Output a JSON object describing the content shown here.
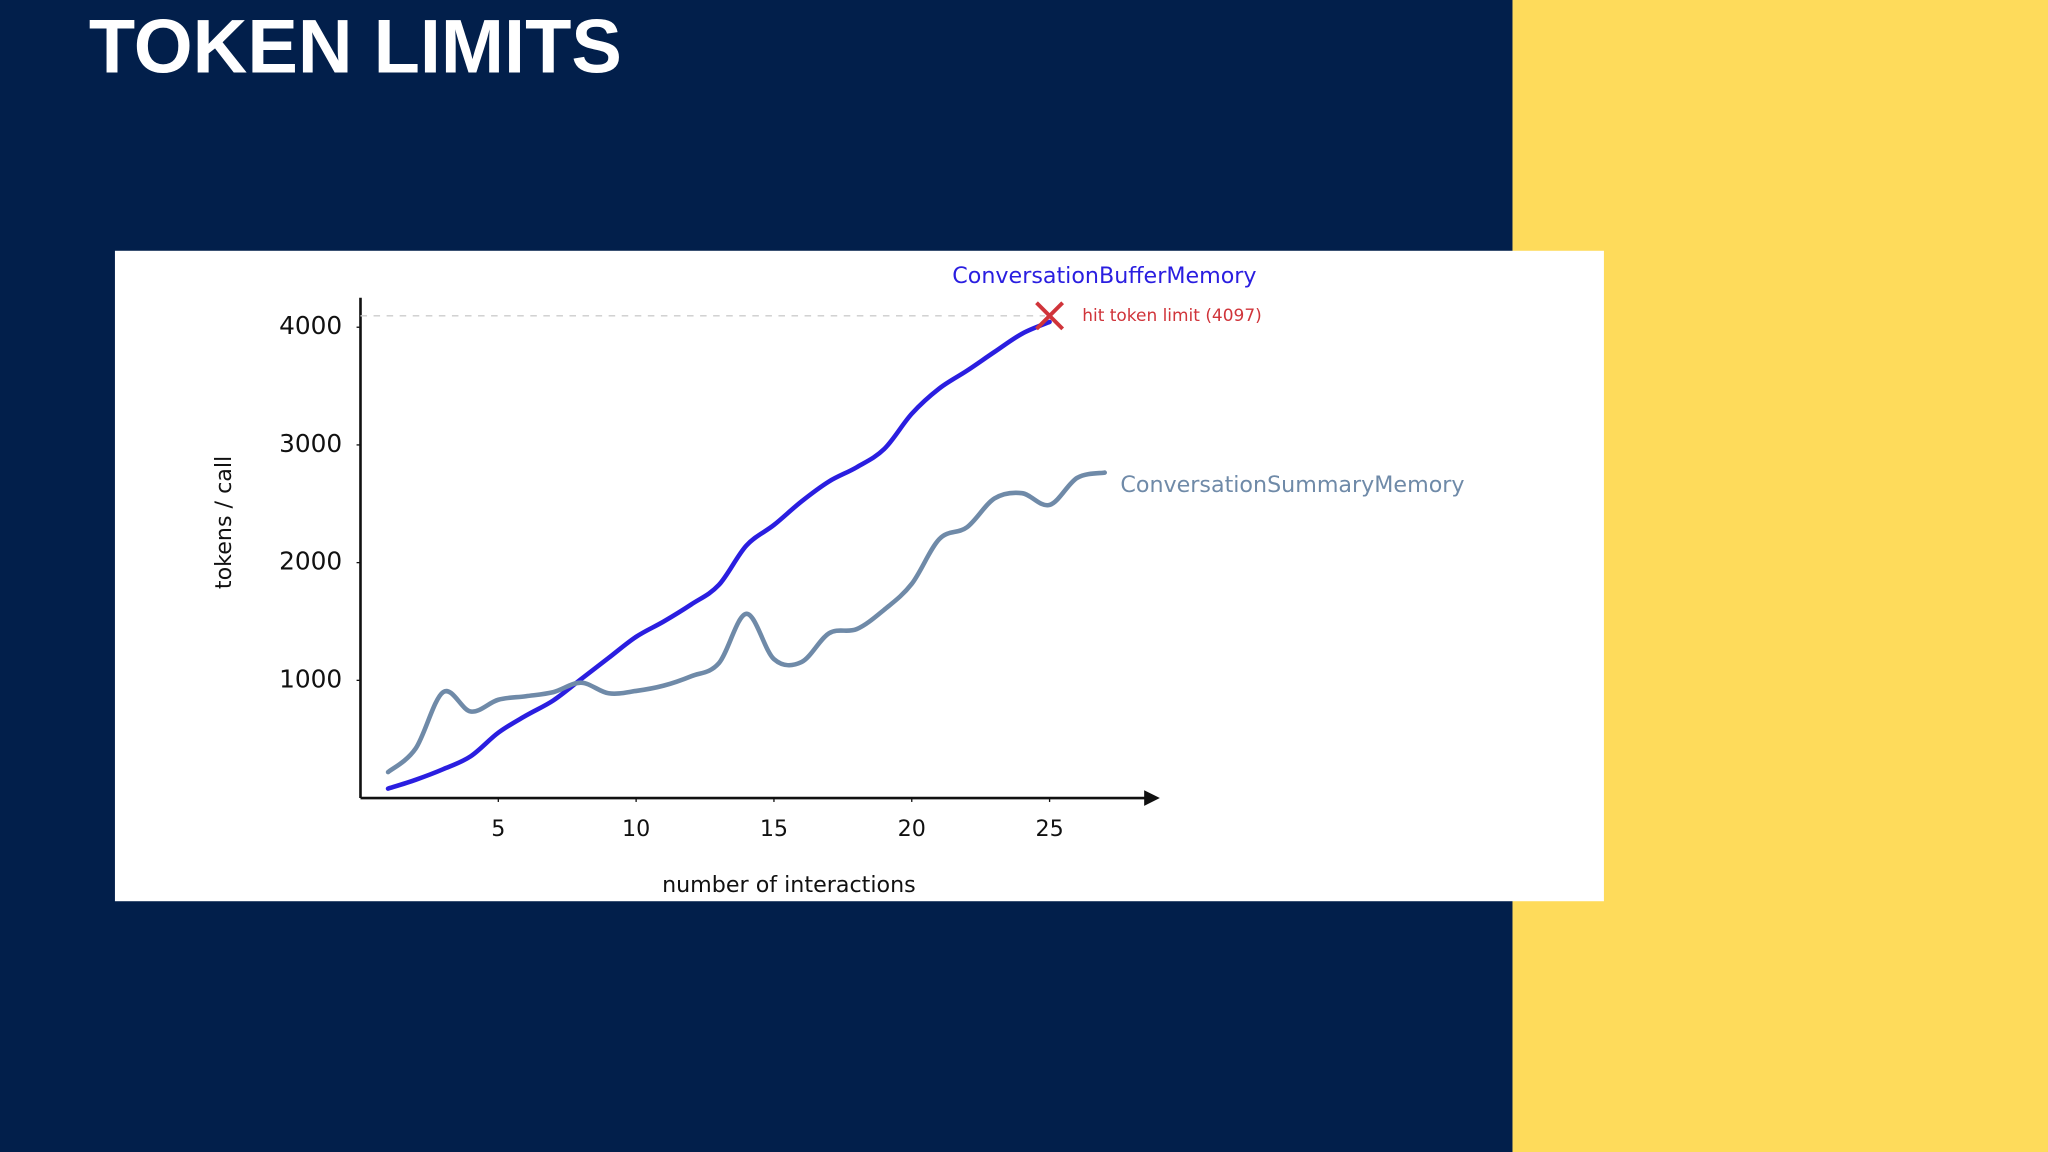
{
  "chart_data": {
    "type": "line",
    "title": "TOKEN LIMITS",
    "x_label": "number of interactions",
    "y_label": "tokens / call",
    "x": [
      1,
      2,
      3,
      4,
      5,
      6,
      7,
      8,
      9,
      10,
      11,
      12,
      13,
      14,
      15,
      16,
      17,
      18,
      19,
      20,
      21,
      22,
      23,
      24,
      25,
      26,
      27
    ],
    "series": [
      {
        "name": "ConversationBufferMemory",
        "color": "#2a1ee0",
        "values": [
          80,
          155,
          245,
          355,
          555,
          700,
          830,
          1010,
          1190,
          1370,
          1500,
          1645,
          1810,
          2145,
          2320,
          2520,
          2690,
          2810,
          2965,
          3265,
          3480,
          3630,
          3790,
          3945,
          4045,
          null,
          null
        ]
      },
      {
        "name": "ConversationSummaryMemory",
        "color": "#6f8aa8",
        "values": [
          220,
          420,
          900,
          735,
          835,
          865,
          900,
          980,
          890,
          910,
          955,
          1035,
          1145,
          1565,
          1180,
          1155,
          1400,
          1435,
          1600,
          1820,
          2200,
          2300,
          2545,
          2590,
          2490,
          2720,
          2765
        ]
      }
    ],
    "annotation": "hit token limit (4097)",
    "limit": 4097,
    "limit_color": "#d0343a",
    "xlim": [
      0,
      29
    ],
    "ylim": [
      0,
      4250
    ],
    "xticks": [
      5,
      10,
      15,
      20,
      25
    ],
    "yticks": [
      1000,
      2000,
      3000,
      4000
    ],
    "grid": false
  }
}
